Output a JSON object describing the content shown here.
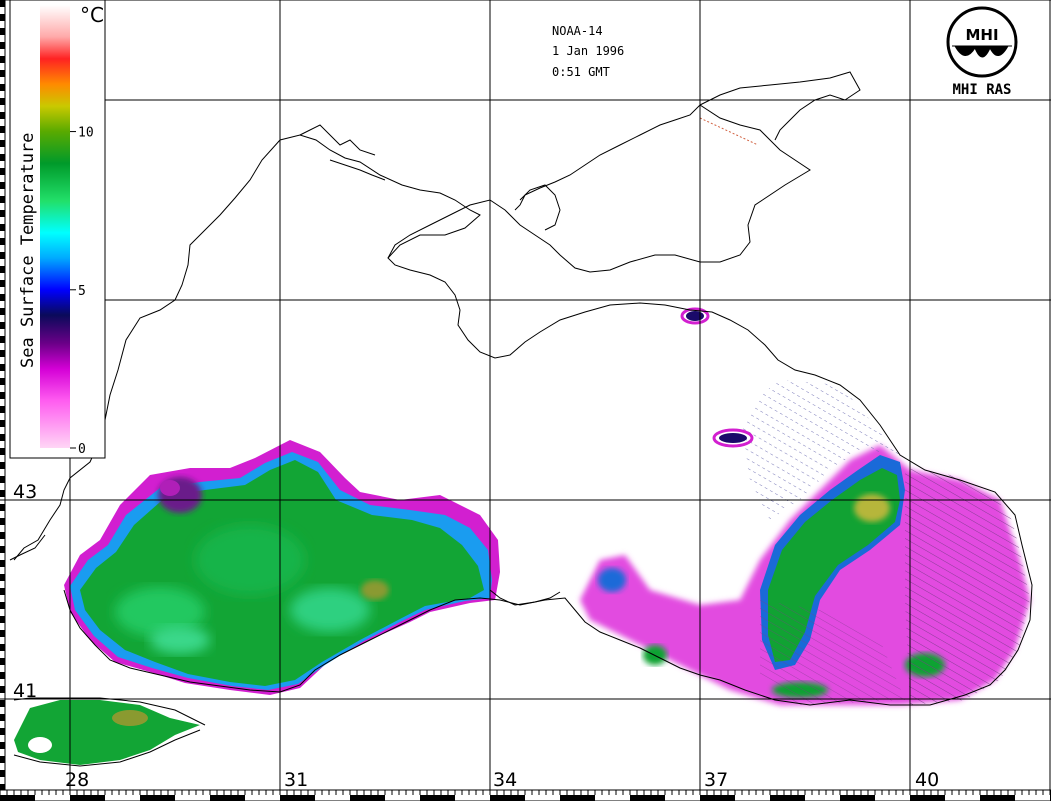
{
  "header": {
    "satellite": "NOAA-14",
    "date": "1 Jan 1996",
    "time": "0:51 GMT"
  },
  "logo": {
    "caption": "MHI RAS",
    "emblem_text": "MHI"
  },
  "legend": {
    "title": "Sea Surface Temperature",
    "unit": "°C",
    "ticks": [
      "0",
      "5",
      "10"
    ],
    "colorbar_stops": [
      {
        "value": 0,
        "color": "#ffd6f5"
      },
      {
        "value": 1.5,
        "color": "#ff5cf0"
      },
      {
        "value": 2.5,
        "color": "#d400d6"
      },
      {
        "value": 3.3,
        "color": "#6b0088"
      },
      {
        "value": 4.2,
        "color": "#0a0a5a"
      },
      {
        "value": 5,
        "color": "#0000ff"
      },
      {
        "value": 6,
        "color": "#00aaff"
      },
      {
        "value": 6.8,
        "color": "#00ffff"
      },
      {
        "value": 7.8,
        "color": "#22e06a"
      },
      {
        "value": 9,
        "color": "#009a2a"
      },
      {
        "value": 10,
        "color": "#59aa00"
      },
      {
        "value": 10.8,
        "color": "#c9c900"
      },
      {
        "value": 11.5,
        "color": "#ff8a00"
      },
      {
        "value": 12.3,
        "color": "#ff2222"
      },
      {
        "value": 13,
        "color": "#ffaaaa"
      },
      {
        "value": 14,
        "color": "#ffffff"
      }
    ]
  },
  "axes": {
    "longitude_labels": [
      "28",
      "31",
      "34",
      "37",
      "40"
    ],
    "latitude_labels": [
      "43",
      "41"
    ]
  },
  "colors": {
    "land": "#ffffff",
    "coastline": "#000000",
    "grid": "#000000",
    "sst_warm": "#0aa22a",
    "sst_cold": "#e020d8"
  }
}
